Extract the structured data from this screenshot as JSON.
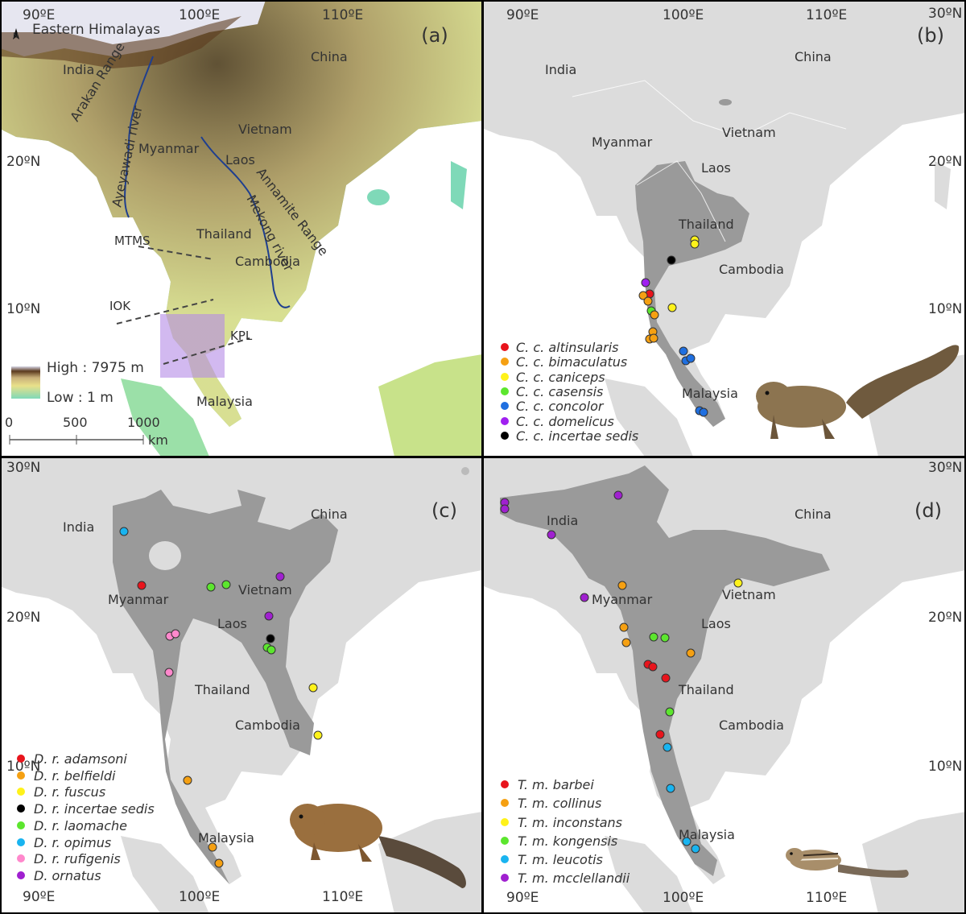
{
  "colors": {
    "sea": "#ffffff",
    "land_grey": "#dcdcdc",
    "range_dark": "#9a9a9a",
    "panel_border": "#000000",
    "river_blue": "#1f3f8f",
    "kpl_box": "#b48ae6",
    "elev_high": "#5b3a1e",
    "elev_mid": "#e9e08a",
    "elev_low": "#7fd9b8"
  },
  "panels": [
    {
      "id": "a",
      "label": "(a)",
      "lon_labels": [
        "90ºE",
        "100ºE",
        "110ºE"
      ],
      "lat_labels": [
        "20ºN",
        "10ºN"
      ],
      "north_arrow": "N",
      "places": [
        "Eastern Himalayas",
        "India",
        "China",
        "Myanmar",
        "Vietnam",
        "Laos",
        "Thailand",
        "Cambodia",
        "Malaysia"
      ],
      "features": [
        "Arakan Range",
        "Ayeyawadi river",
        "Mekong river",
        "Annamite Range"
      ],
      "lines": [
        "MTMS",
        "IOK",
        "KPL"
      ],
      "legend": {
        "high": "High : 7975 m",
        "low": "Low : 1 m"
      },
      "scale": {
        "ticks": [
          "0",
          "500",
          "1000"
        ],
        "unit": "km"
      }
    },
    {
      "id": "b",
      "label": "(b)",
      "lon_labels": [
        "90ºE",
        "100ºE",
        "110ºE"
      ],
      "lat_labels": [
        "30ºN",
        "20ºN",
        "10ºN"
      ],
      "places": [
        "India",
        "China",
        "Myanmar",
        "Vietnam",
        "Laos",
        "Thailand",
        "Cambodia",
        "Malaysia"
      ],
      "legend": [
        {
          "name": "C. c. altinsularis",
          "color": "#e8141c"
        },
        {
          "name": "C. c. bimaculatus",
          "color": "#f5a012"
        },
        {
          "name": "C. c. caniceps",
          "color": "#fff21a"
        },
        {
          "name": "C. c. casensis",
          "color": "#5ce62e"
        },
        {
          "name": "C. c. concolor",
          "color": "#1f6fe0"
        },
        {
          "name": "C. c. domelicus",
          "color": "#a020f0"
        },
        {
          "name": "C. c. incertae sedis",
          "color": "#000000"
        }
      ],
      "animal": "squirrel-illustration"
    },
    {
      "id": "c",
      "label": "(c)",
      "lon_labels": [
        "90ºE",
        "100ºE",
        "110ºE"
      ],
      "lat_labels": [
        "30ºN",
        "20ºN",
        "10ºN"
      ],
      "places": [
        "India",
        "China",
        "Myanmar",
        "Vietnam",
        "Laos",
        "Thailand",
        "Cambodia",
        "Malaysia"
      ],
      "legend": [
        {
          "name": "D. r. adamsoni",
          "color": "#e8141c"
        },
        {
          "name": "D. r. belfieldi",
          "color": "#f5a012"
        },
        {
          "name": "D. r. fuscus",
          "color": "#fff21a"
        },
        {
          "name": "D. r. incertae sedis",
          "color": "#000000"
        },
        {
          "name": "D. r. laomache",
          "color": "#5ce62e"
        },
        {
          "name": "D. r. opimus",
          "color": "#19b4f0"
        },
        {
          "name": "D. r. rufigenis",
          "color": "#ff88cc"
        },
        {
          "name": "D. ornatus",
          "color": "#a020d0"
        }
      ],
      "animal": "squirrel-illustration"
    },
    {
      "id": "d",
      "label": "(d)",
      "lon_labels": [
        "90ºE",
        "100ºE",
        "110ºE"
      ],
      "lat_labels": [
        "30ºN",
        "20ºN",
        "10ºN"
      ],
      "places": [
        "India",
        "China",
        "Myanmar",
        "Vietnam",
        "Laos",
        "Thailand",
        "Cambodia",
        "Malaysia"
      ],
      "legend": [
        {
          "name": "T. m. barbei",
          "color": "#e8141c"
        },
        {
          "name": "T. m. collinus",
          "color": "#f5a012"
        },
        {
          "name": "T. m. inconstans",
          "color": "#fff21a"
        },
        {
          "name": "T. m. kongensis",
          "color": "#5ce62e"
        },
        {
          "name": "T. m. leucotis",
          "color": "#19b4f0"
        },
        {
          "name": "T. m. mcclellandii",
          "color": "#a020d0"
        }
      ],
      "animal": "chipmunk-illustration"
    }
  ]
}
